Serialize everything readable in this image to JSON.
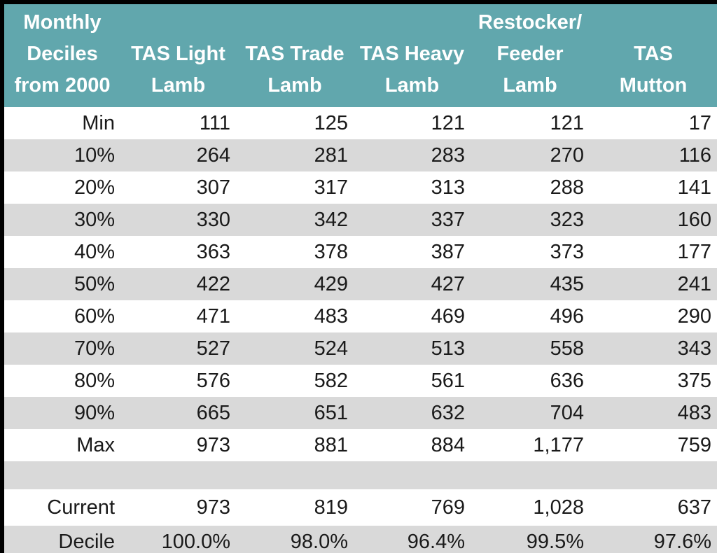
{
  "colors": {
    "border": "#000000",
    "header_bg": "#61A7AD",
    "header_text": "#FFFFFF",
    "stripe_row_bg": "#D9D9D9",
    "row_bg": "#FFFFFF",
    "text": "#1A1A1A"
  },
  "table": {
    "columns": [
      {
        "id": "deciles",
        "label": "Monthly\nDeciles\nfrom 2000"
      },
      {
        "id": "tas-light-lamb",
        "label": "TAS Light\nLamb"
      },
      {
        "id": "tas-trade-lamb",
        "label": "TAS Trade\nLamb"
      },
      {
        "id": "tas-heavy-lamb",
        "label": "TAS Heavy\nLamb"
      },
      {
        "id": "restocker-feeder-lamb",
        "label": "Restocker/\nFeeder\nLamb"
      },
      {
        "id": "tas-mutton",
        "label": "TAS\nMutton"
      }
    ],
    "rows": [
      {
        "label": "Min",
        "values": [
          "111",
          "125",
          "121",
          "121",
          "17"
        ],
        "shaded": false,
        "type": "data"
      },
      {
        "label": "10%",
        "values": [
          "264",
          "281",
          "283",
          "270",
          "116"
        ],
        "shaded": true,
        "type": "data"
      },
      {
        "label": "20%",
        "values": [
          "307",
          "317",
          "313",
          "288",
          "141"
        ],
        "shaded": false,
        "type": "data"
      },
      {
        "label": "30%",
        "values": [
          "330",
          "342",
          "337",
          "323",
          "160"
        ],
        "shaded": true,
        "type": "data"
      },
      {
        "label": "40%",
        "values": [
          "363",
          "378",
          "387",
          "373",
          "177"
        ],
        "shaded": false,
        "type": "data"
      },
      {
        "label": "50%",
        "values": [
          "422",
          "429",
          "427",
          "435",
          "241"
        ],
        "shaded": true,
        "type": "data"
      },
      {
        "label": "60%",
        "values": [
          "471",
          "483",
          "469",
          "496",
          "290"
        ],
        "shaded": false,
        "type": "data"
      },
      {
        "label": "70%",
        "values": [
          "527",
          "524",
          "513",
          "558",
          "343"
        ],
        "shaded": true,
        "type": "data"
      },
      {
        "label": "80%",
        "values": [
          "576",
          "582",
          "561",
          "636",
          "375"
        ],
        "shaded": false,
        "type": "data"
      },
      {
        "label": "90%",
        "values": [
          "665",
          "651",
          "632",
          "704",
          "483"
        ],
        "shaded": true,
        "type": "data"
      },
      {
        "label": "Max",
        "values": [
          "973",
          "881",
          "884",
          "1,177",
          "759"
        ],
        "shaded": false,
        "type": "data"
      },
      {
        "label": "",
        "values": [
          "",
          "",
          "",
          "",
          ""
        ],
        "shaded": true,
        "type": "spacer"
      },
      {
        "label": "Current",
        "values": [
          "973",
          "819",
          "769",
          "1,028",
          "637"
        ],
        "shaded": false,
        "type": "data"
      },
      {
        "label": "Decile",
        "values": [
          "100.0%",
          "98.0%",
          "96.4%",
          "99.5%",
          "97.6%"
        ],
        "shaded": true,
        "type": "data"
      }
    ]
  },
  "chart_data": {
    "type": "table",
    "title": "Monthly Deciles from 2000",
    "columns": [
      "Monthly Deciles from 2000",
      "TAS Light Lamb",
      "TAS Trade Lamb",
      "TAS Heavy Lamb",
      "Restocker/ Feeder Lamb",
      "TAS Mutton"
    ],
    "rows": [
      [
        "Min",
        111,
        125,
        121,
        121,
        17
      ],
      [
        "10%",
        264,
        281,
        283,
        270,
        116
      ],
      [
        "20%",
        307,
        317,
        313,
        288,
        141
      ],
      [
        "30%",
        330,
        342,
        337,
        323,
        160
      ],
      [
        "40%",
        363,
        378,
        387,
        373,
        177
      ],
      [
        "50%",
        422,
        429,
        427,
        435,
        241
      ],
      [
        "60%",
        471,
        483,
        469,
        496,
        290
      ],
      [
        "70%",
        527,
        524,
        513,
        558,
        343
      ],
      [
        "80%",
        576,
        582,
        561,
        636,
        375
      ],
      [
        "90%",
        665,
        651,
        632,
        704,
        483
      ],
      [
        "Max",
        973,
        881,
        884,
        1177,
        759
      ],
      [
        "Current",
        973,
        819,
        769,
        1028,
        637
      ],
      [
        "Decile",
        "100.0%",
        "98.0%",
        "96.4%",
        "99.5%",
        "97.6%"
      ]
    ]
  }
}
